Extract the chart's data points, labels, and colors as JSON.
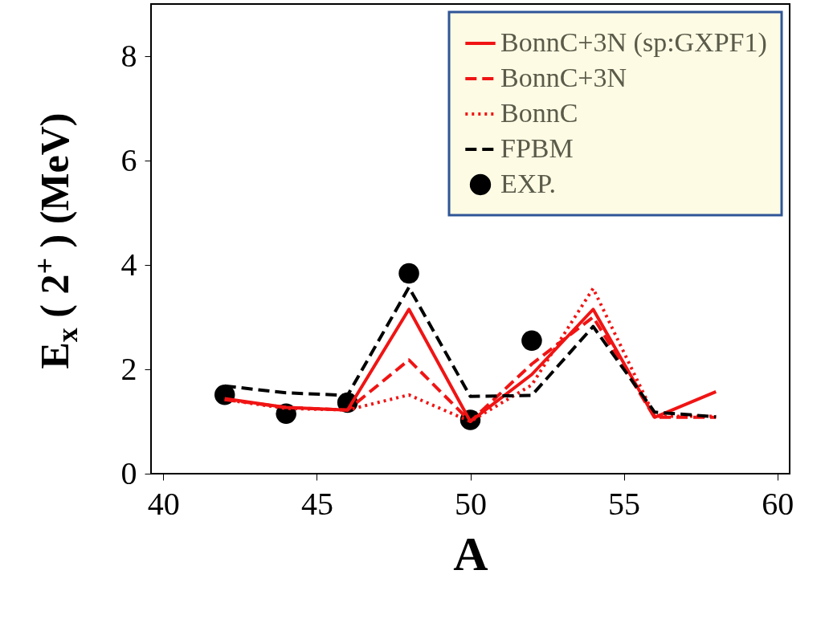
{
  "chart_data": {
    "type": "line",
    "xlabel": "A",
    "ylabel": "E$_{x}$ ( 2$^{+}$ )  (MeV)",
    "x": [
      42,
      44,
      46,
      48,
      50,
      52,
      54,
      56,
      58
    ],
    "xlim": [
      39.6,
      60.4
    ],
    "xticks": [
      40,
      45,
      50,
      55,
      60
    ],
    "ylim": [
      0,
      9
    ],
    "yticks": [
      0,
      2,
      4,
      6,
      8
    ],
    "grid": false,
    "legend": "top right",
    "series": [
      {
        "name": "BonnC+3N (sp:GXPF1)",
        "color": "#f01414",
        "line_style": "solid",
        "values": [
          1.44,
          1.27,
          1.22,
          3.15,
          1.0,
          1.9,
          3.15,
          1.08,
          1.57
        ]
      },
      {
        "name": "BonnC+3N",
        "color": "#f01414",
        "line_style": "dashed",
        "values": [
          1.42,
          1.27,
          1.22,
          2.18,
          1.0,
          2.1,
          3.0,
          1.08,
          1.08
        ]
      },
      {
        "name": "BonnC",
        "color": "#f01414",
        "line_style": "dotted",
        "values": [
          1.42,
          1.25,
          1.22,
          1.51,
          1.0,
          1.7,
          3.55,
          1.1,
          1.1
        ]
      },
      {
        "name": "FPBM",
        "color": "#000000",
        "line_style": "dashed",
        "values": [
          1.68,
          1.55,
          1.5,
          3.57,
          1.48,
          1.5,
          2.82,
          1.18,
          1.09
        ]
      },
      {
        "name": "EXP.",
        "color": "#000000",
        "type": "scatter",
        "marker": "circle",
        "x": [
          42,
          44,
          46,
          48,
          50,
          52
        ],
        "values": [
          1.51,
          1.15,
          1.36,
          3.84,
          1.03,
          2.55
        ]
      }
    ]
  }
}
